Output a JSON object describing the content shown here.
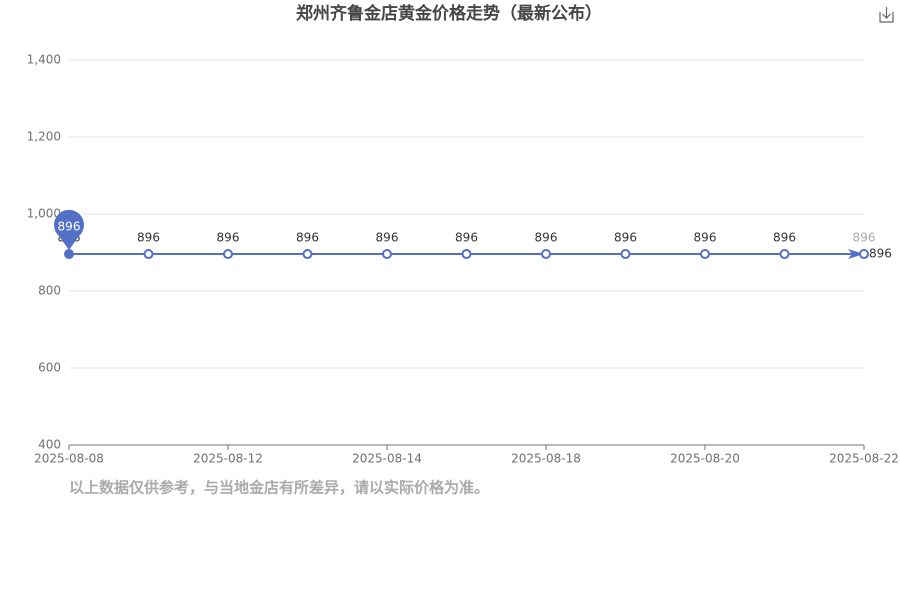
{
  "chart_data": {
    "type": "line",
    "title": "郑州齐鲁金店黄金价格走势（最新公布）",
    "categories": [
      "2025-08-08",
      null,
      "2025-08-12",
      null,
      "2025-08-14",
      null,
      "2025-08-18",
      null,
      "2025-08-20",
      null,
      "2025-08-22"
    ],
    "values": [
      896,
      896,
      896,
      896,
      896,
      896,
      896,
      896,
      896,
      896,
      896
    ],
    "color": "#5470c6",
    "ylim": [
      400,
      1400
    ],
    "yticks": [
      400,
      600,
      800,
      {
        "value": 1000,
        "label": "1,000"
      },
      {
        "value": 1200,
        "label": "1,200"
      },
      {
        "value": 1400,
        "label": "1,400"
      }
    ],
    "grid": true,
    "note": "以上数据仅供参考，与当地金店有所差异，请以实际价格为准。"
  }
}
